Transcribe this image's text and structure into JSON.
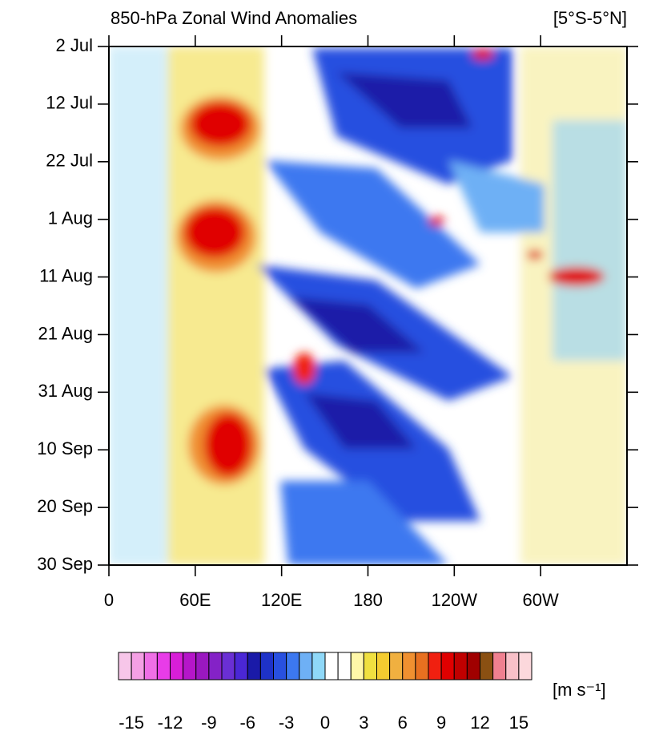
{
  "chart_data": {
    "type": "heatmap",
    "title": "850-hPa Zonal Wind Anomalies",
    "subtitle": "[5°S-5°N]",
    "xlim": [
      0,
      360
    ],
    "xticks": [
      0,
      {
        "value": 60,
        "label": "60E"
      },
      {
        "value": 120,
        "label": "120E"
      },
      180,
      {
        "value": 240,
        "label": "120W"
      },
      {
        "value": 300,
        "label": "60W"
      }
    ],
    "ylim": [
      0,
      90
    ],
    "yticks": [
      {
        "value": 0,
        "label": "2 Jul"
      },
      {
        "value": 10,
        "label": "12 Jul"
      },
      {
        "value": 20,
        "label": "22 Jul"
      },
      {
        "value": 30,
        "label": "1 Aug"
      },
      {
        "value": 40,
        "label": "11 Aug"
      },
      {
        "value": 50,
        "label": "21 Aug"
      },
      {
        "value": 60,
        "label": "31 Aug"
      },
      {
        "value": 70,
        "label": "10 Sep"
      },
      {
        "value": 80,
        "label": "20 Sep"
      },
      {
        "value": 90,
        "label": "30 Sep"
      }
    ],
    "colorbar": {
      "units": "[m s⁻¹]",
      "clim": [
        -16,
        16
      ],
      "ticks": [
        -15,
        -12,
        -9,
        -6,
        -3,
        0,
        3,
        6,
        9,
        12,
        15
      ],
      "colors": [
        "#f7c6e9",
        "#f4a0e4",
        "#ef6fe6",
        "#e83ce8",
        "#d81ed8",
        "#b516c9",
        "#9a18c0",
        "#8422c7",
        "#6a2fd4",
        "#4a27d6",
        "#1a1aa8",
        "#1e32c8",
        "#2850e0",
        "#3c78f0",
        "#6eb0f5",
        "#8fd8f8",
        "#ffffff",
        "#ffffff",
        "#fff7a8",
        "#f0e040",
        "#f4cc30",
        "#f0b040",
        "#f09030",
        "#e87020",
        "#f02010",
        "#e00000",
        "#c00000",
        "#a00000",
        "#8a5012",
        "#f08090",
        "#f8c0c8",
        "#fcd8dc"
      ]
    }
  }
}
